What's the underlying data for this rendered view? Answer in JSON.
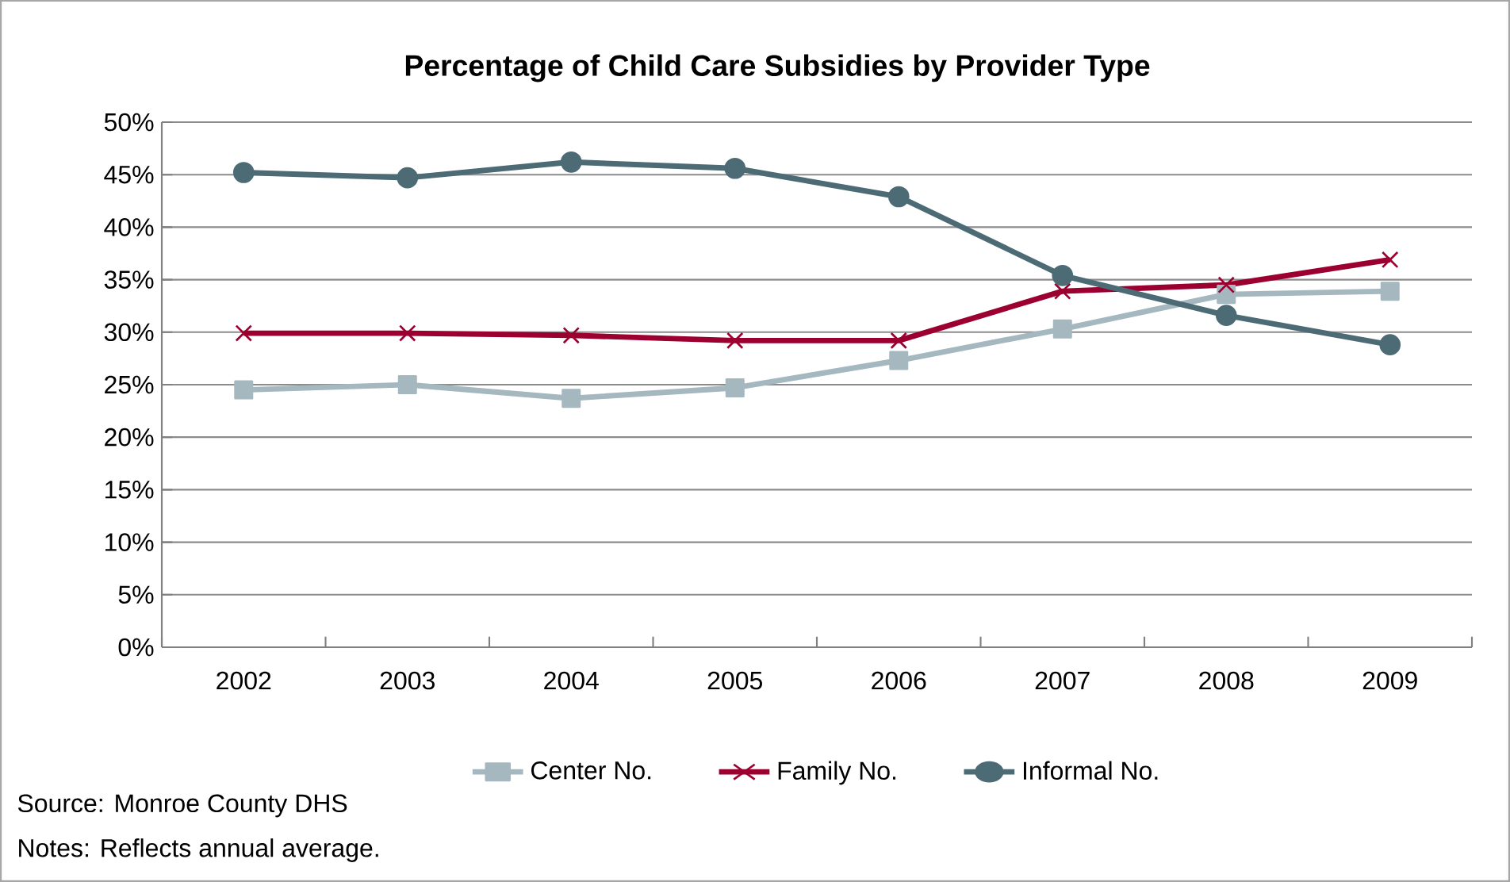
{
  "chart_data": {
    "type": "line",
    "title": "Percentage of Child Care Subsidies by Provider Type",
    "categories": [
      "2002",
      "2003",
      "2004",
      "2005",
      "2006",
      "2007",
      "2008",
      "2009"
    ],
    "series": [
      {
        "name": "Center No.",
        "color": "#a5b8c0",
        "marker": "square",
        "values": [
          24.5,
          25.0,
          23.7,
          24.7,
          27.3,
          30.3,
          33.6,
          33.9
        ]
      },
      {
        "name": "Family No.",
        "color": "#9b0030",
        "marker": "cross",
        "values": [
          29.9,
          29.9,
          29.7,
          29.2,
          29.2,
          33.9,
          34.5,
          36.9
        ]
      },
      {
        "name": "Informal No.",
        "color": "#4d6b75",
        "marker": "circle",
        "values": [
          45.2,
          44.7,
          46.2,
          45.6,
          42.9,
          35.4,
          31.6,
          28.8
        ]
      }
    ],
    "ylim": [
      0,
      50
    ],
    "yticks": [
      {
        "value": 0,
        "label": "0%"
      },
      {
        "value": 5,
        "label": "5%"
      },
      {
        "value": 10,
        "label": "10%"
      },
      {
        "value": 15,
        "label": "15%"
      },
      {
        "value": 20,
        "label": "20%"
      },
      {
        "value": 25,
        "label": "25%"
      },
      {
        "value": 30,
        "label": "30%"
      },
      {
        "value": 35,
        "label": "35%"
      },
      {
        "value": 40,
        "label": "40%"
      },
      {
        "value": 45,
        "label": "45%"
      },
      {
        "value": 50,
        "label": "50%"
      }
    ],
    "grid": "y",
    "legend": "bottom",
    "line_style": "solid",
    "annotations": [
      "Source: Monroe County DHS",
      "Notes: Reflects annual average."
    ]
  }
}
